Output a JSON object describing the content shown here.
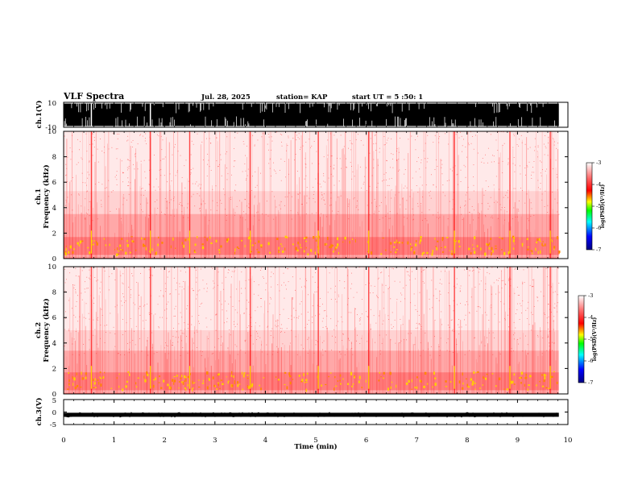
{
  "header": {
    "title": "VLF Spectra",
    "date": "Jul. 28, 2025",
    "station": "station= KAP",
    "start_ut": "start UT =  5 :50: 1"
  },
  "chart_data": [
    {
      "type": "line",
      "name": "ch1-waveform",
      "ylabel": "ch.1(V)",
      "ylim": [
        -10,
        10
      ],
      "yticks": [
        "10",
        "-10"
      ],
      "xlim": [
        0,
        10
      ],
      "data_end": 9.82,
      "note": "dense broadband waveform, saturating between -10 and 10 V"
    },
    {
      "type": "heatmap",
      "name": "ch1-spectrogram",
      "ylabel_top": "ch.1",
      "ylabel": "Frequency (kHz)",
      "ylim": [
        0,
        10
      ],
      "yticks": [
        "0",
        "2",
        "4",
        "6",
        "8",
        "10"
      ],
      "xlim": [
        0,
        10
      ],
      "data_end": 9.82,
      "bands_khz": [
        [
          0.3,
          1.7,
          "strong"
        ],
        [
          1.7,
          3.5,
          "medium"
        ],
        [
          3.5,
          5.3,
          "weak"
        ],
        [
          5.3,
          10,
          "sparse"
        ]
      ],
      "bright_times_min": [
        0.55,
        1.72,
        2.5,
        3.7,
        5.05,
        6.05,
        7.75,
        8.85,
        9.65
      ]
    },
    {
      "type": "heatmap",
      "name": "ch2-spectrogram",
      "ylabel_top": "ch.2",
      "ylabel": "Frequency (kHz)",
      "ylim": [
        0,
        10
      ],
      "yticks": [
        "0",
        "2",
        "4",
        "6",
        "8",
        "10"
      ],
      "xlim": [
        0,
        10
      ],
      "data_end": 9.82,
      "bands_khz": [
        [
          0.3,
          1.7,
          "strong"
        ],
        [
          1.7,
          3.4,
          "medium"
        ],
        [
          3.4,
          5.0,
          "weak"
        ],
        [
          5.0,
          10,
          "sparse"
        ]
      ],
      "bright_times_min": [
        0.55,
        1.72,
        2.5,
        3.7,
        5.05,
        6.05,
        7.75,
        8.85,
        9.65
      ]
    },
    {
      "type": "line",
      "name": "ch3-waveform",
      "ylabel": "ch.3(V)",
      "ylim": [
        -5,
        5
      ],
      "yticks": [
        "5",
        "0",
        "-5"
      ],
      "xlim": [
        0,
        10
      ],
      "data_end": 9.82,
      "level_v": -1.1
    }
  ],
  "x_axis": {
    "label": "Time (min)",
    "ticks": [
      "0",
      "1",
      "2",
      "3",
      "4",
      "5",
      "6",
      "7",
      "8",
      "9",
      "10"
    ]
  },
  "colorbar": {
    "label": "log(PSD)(V²/Hz)",
    "ticks": [
      "-3",
      "-4",
      "-5",
      "-6",
      "-7"
    ],
    "range": [
      -7,
      -3
    ],
    "colors": [
      "#000080",
      "#0000ff",
      "#00ffff",
      "#00ff00",
      "#ffff00",
      "#ff0000",
      "#ffffff"
    ]
  }
}
